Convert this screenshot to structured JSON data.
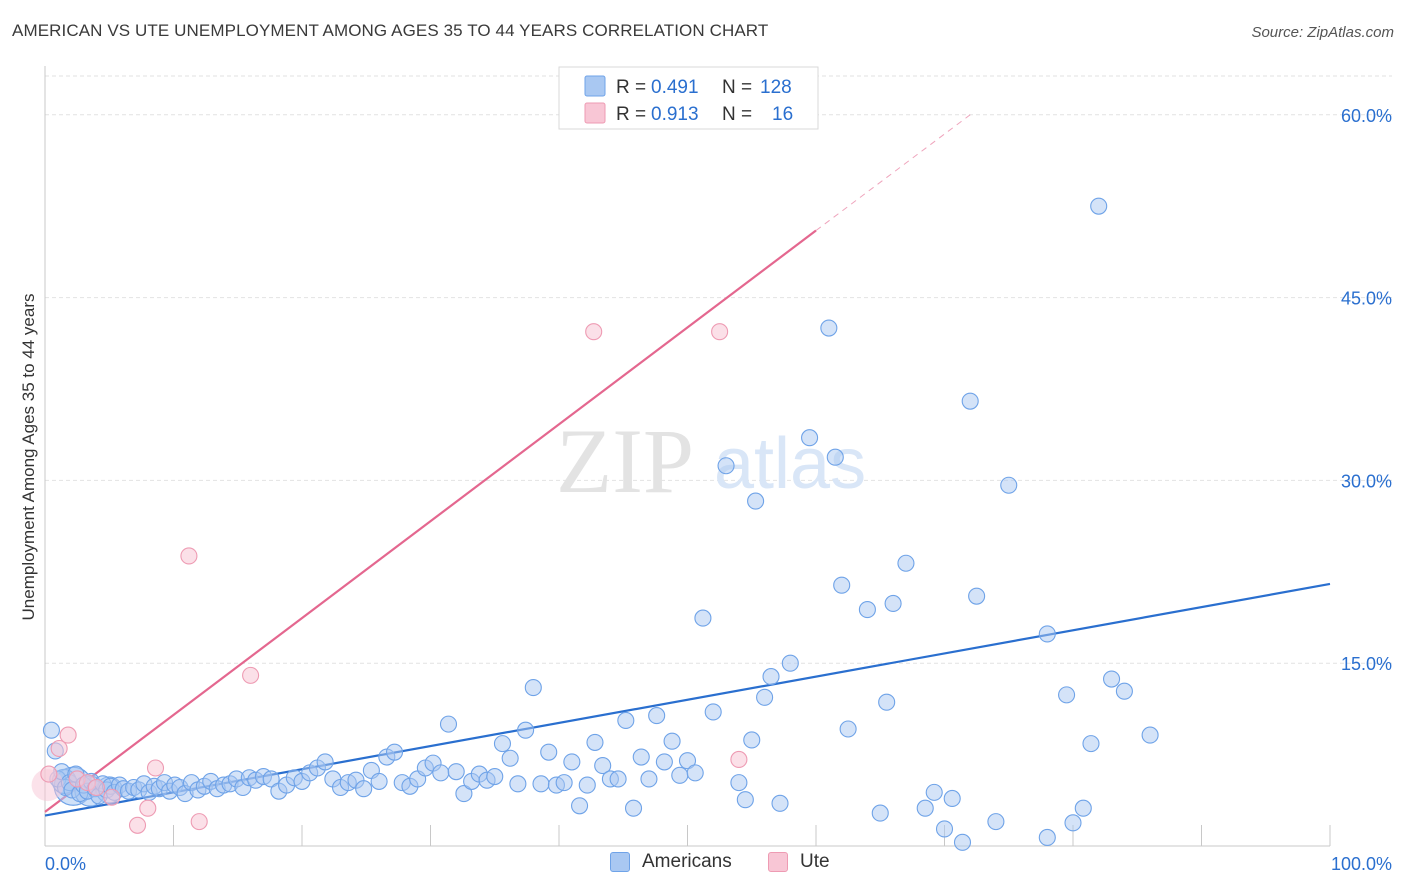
{
  "title": "AMERICAN VS UTE UNEMPLOYMENT AMONG AGES 35 TO 44 YEARS CORRELATION CHART",
  "source": "Source: ZipAtlas.com",
  "watermark": {
    "zip": "ZIP",
    "atlas": "atlas"
  },
  "chart_data": {
    "type": "scatter",
    "title": "AMERICAN VS UTE UNEMPLOYMENT AMONG AGES 35 TO 44 YEARS CORRELATION CHART",
    "xlabel": "",
    "ylabel": "Unemployment Among Ages 35 to 44 years",
    "xlim": [
      0,
      100
    ],
    "ylim": [
      0,
      64
    ],
    "x_tick_labels": {
      "min": "0.0%",
      "max": "100.0%"
    },
    "y_ticks": [
      15,
      30,
      45,
      60
    ],
    "y_tick_labels": [
      "15.0%",
      "30.0%",
      "45.0%",
      "60.0%"
    ],
    "grid": true,
    "legend_position": "top-center",
    "stats": [
      {
        "r_label": "R =",
        "r": "0.491",
        "n_label": "N =",
        "n": "128"
      },
      {
        "r_label": "R =",
        "r": "0.913",
        "n_label": "N =",
        "n": "16"
      }
    ],
    "series": [
      {
        "name": "Americans",
        "color": "#6fa3e8",
        "fill": "#a9c8f2",
        "line_color": "#2a6fcf",
        "trend": {
          "x": [
            0,
            100
          ],
          "y": [
            2.5,
            21.5
          ]
        },
        "points": [
          [
            0.5,
            9.5
          ],
          [
            0.8,
            7.8
          ],
          [
            1.0,
            5.5
          ],
          [
            1.3,
            6.1
          ],
          [
            1.6,
            4.8
          ],
          [
            1.9,
            5.2
          ],
          [
            2.1,
            4.6
          ],
          [
            2.4,
            5.9
          ],
          [
            2.7,
            4.3
          ],
          [
            3.0,
            5.0
          ],
          [
            3.3,
            4.5
          ],
          [
            3.6,
            5.3
          ],
          [
            3.9,
            4.7
          ],
          [
            4.2,
            4.1
          ],
          [
            4.5,
            5.1
          ],
          [
            4.8,
            4.6
          ],
          [
            5.1,
            4.9
          ],
          [
            5.4,
            4.4
          ],
          [
            5.8,
            5.0
          ],
          [
            6.1,
            4.7
          ],
          [
            6.5,
            4.5
          ],
          [
            6.9,
            4.8
          ],
          [
            7.3,
            4.6
          ],
          [
            7.7,
            5.1
          ],
          [
            8.1,
            4.4
          ],
          [
            8.5,
            4.9
          ],
          [
            8.9,
            4.7
          ],
          [
            9.3,
            5.2
          ],
          [
            9.7,
            4.5
          ],
          [
            10.1,
            5.0
          ],
          [
            10.5,
            4.8
          ],
          [
            10.9,
            4.3
          ],
          [
            11.4,
            5.2
          ],
          [
            11.9,
            4.6
          ],
          [
            12.4,
            4.9
          ],
          [
            12.9,
            5.3
          ],
          [
            13.4,
            4.7
          ],
          [
            13.9,
            5.0
          ],
          [
            14.4,
            5.1
          ],
          [
            14.9,
            5.5
          ],
          [
            15.4,
            4.8
          ],
          [
            15.9,
            5.6
          ],
          [
            16.4,
            5.4
          ],
          [
            17.0,
            5.7
          ],
          [
            17.6,
            5.5
          ],
          [
            18.2,
            4.5
          ],
          [
            18.8,
            5.0
          ],
          [
            19.4,
            5.6
          ],
          [
            20.0,
            5.3
          ],
          [
            20.6,
            6.0
          ],
          [
            21.2,
            6.4
          ],
          [
            21.8,
            6.9
          ],
          [
            22.4,
            5.5
          ],
          [
            23.0,
            4.8
          ],
          [
            23.6,
            5.2
          ],
          [
            24.2,
            5.4
          ],
          [
            24.8,
            4.7
          ],
          [
            25.4,
            6.2
          ],
          [
            26.0,
            5.3
          ],
          [
            26.6,
            7.3
          ],
          [
            27.2,
            7.7
          ],
          [
            27.8,
            5.2
          ],
          [
            28.4,
            4.9
          ],
          [
            29.0,
            5.5
          ],
          [
            29.6,
            6.4
          ],
          [
            30.2,
            6.8
          ],
          [
            30.8,
            6.0
          ],
          [
            31.4,
            10.0
          ],
          [
            32.0,
            6.1
          ],
          [
            32.6,
            4.3
          ],
          [
            33.2,
            5.3
          ],
          [
            33.8,
            5.9
          ],
          [
            34.4,
            5.4
          ],
          [
            35.0,
            5.7
          ],
          [
            35.6,
            8.4
          ],
          [
            36.2,
            7.2
          ],
          [
            36.8,
            5.1
          ],
          [
            37.4,
            9.5
          ],
          [
            38.0,
            13.0
          ],
          [
            38.6,
            5.1
          ],
          [
            39.2,
            7.7
          ],
          [
            39.8,
            5.0
          ],
          [
            40.4,
            5.2
          ],
          [
            41.0,
            6.9
          ],
          [
            41.6,
            3.3
          ],
          [
            42.2,
            5.0
          ],
          [
            42.8,
            8.5
          ],
          [
            43.4,
            6.6
          ],
          [
            44.0,
            5.5
          ],
          [
            44.6,
            5.5
          ],
          [
            45.2,
            10.3
          ],
          [
            45.8,
            3.1
          ],
          [
            46.4,
            7.3
          ],
          [
            47.0,
            5.5
          ],
          [
            47.6,
            10.7
          ],
          [
            48.2,
            6.9
          ],
          [
            48.8,
            8.6
          ],
          [
            49.4,
            5.8
          ],
          [
            50.0,
            7.0
          ],
          [
            50.6,
            6.0
          ],
          [
            51.2,
            18.7
          ],
          [
            52.0,
            11.0
          ],
          [
            53.0,
            31.2
          ],
          [
            54.0,
            5.2
          ],
          [
            54.5,
            3.8
          ],
          [
            55.0,
            8.7
          ],
          [
            55.3,
            28.3
          ],
          [
            56.0,
            12.2
          ],
          [
            56.5,
            13.9
          ],
          [
            57.2,
            3.5
          ],
          [
            58.0,
            15.0
          ],
          [
            59.5,
            33.5
          ],
          [
            61.0,
            42.5
          ],
          [
            61.5,
            31.9
          ],
          [
            62.0,
            21.4
          ],
          [
            62.5,
            9.6
          ],
          [
            64.0,
            19.4
          ],
          [
            65.0,
            2.7
          ],
          [
            65.5,
            11.8
          ],
          [
            66.0,
            19.9
          ],
          [
            67.0,
            23.2
          ],
          [
            68.5,
            3.1
          ],
          [
            69.2,
            4.4
          ],
          [
            70.0,
            1.4
          ],
          [
            70.6,
            3.9
          ],
          [
            72.5,
            20.5
          ],
          [
            78.0,
            0.7
          ],
          [
            80.0,
            1.9
          ]
        ]
      },
      {
        "name": "Ute",
        "color": "#ee9bb3",
        "fill": "#f8c6d5",
        "line_color": "#e4678f",
        "trend": {
          "x": [
            0,
            60
          ],
          "y": [
            2.8,
            50.5
          ]
        },
        "trend_dashed": {
          "x": [
            60,
            72
          ],
          "y": [
            50.5,
            60.0
          ]
        },
        "points": [
          [
            0.3,
            5.9
          ],
          [
            1.1,
            8.0
          ],
          [
            1.8,
            9.1
          ],
          [
            2.5,
            5.5
          ],
          [
            3.3,
            5.2
          ],
          [
            4.0,
            4.8
          ],
          [
            5.2,
            4.0
          ],
          [
            7.2,
            1.7
          ],
          [
            8.0,
            3.1
          ],
          [
            8.6,
            6.4
          ],
          [
            11.2,
            23.8
          ],
          [
            12.0,
            2.0
          ],
          [
            16.0,
            14.0
          ],
          [
            42.7,
            42.2
          ],
          [
            52.5,
            42.2
          ],
          [
            54.0,
            7.1
          ]
        ]
      }
    ],
    "extra_american_points": [
      [
        82.0,
        52.5
      ],
      [
        72.0,
        36.5
      ],
      [
        75.0,
        29.6
      ],
      [
        78.0,
        17.4
      ],
      [
        79.5,
        12.4
      ],
      [
        80.8,
        3.1
      ],
      [
        81.4,
        8.4
      ],
      [
        83.0,
        13.7
      ],
      [
        84.0,
        12.7
      ],
      [
        86.0,
        9.1
      ],
      [
        74.0,
        2.0
      ],
      [
        71.4,
        0.3
      ]
    ]
  },
  "bottom_legend": [
    {
      "label": "Americans"
    },
    {
      "label": "Ute"
    }
  ]
}
